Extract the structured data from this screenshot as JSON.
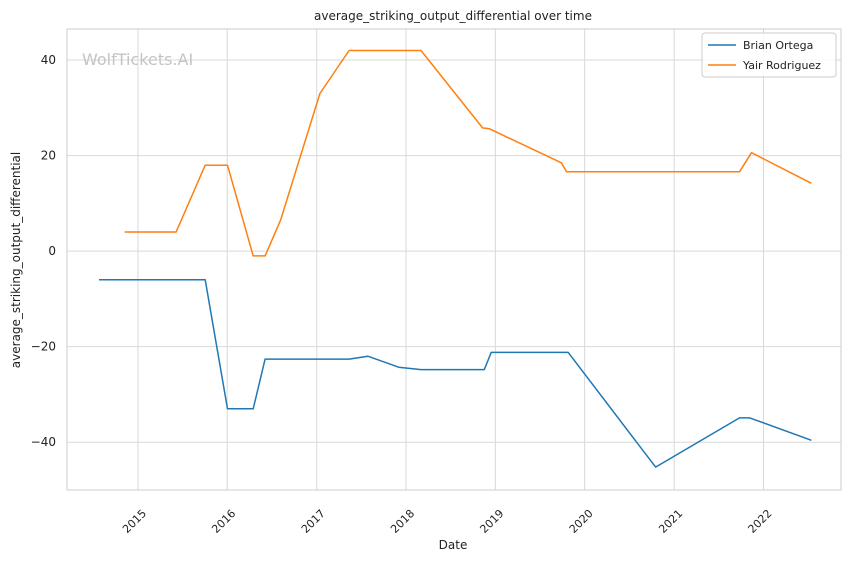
{
  "chart_data": {
    "type": "line",
    "title": "average_striking_output_differential over time",
    "xlabel": "Date",
    "ylabel": "average_striking_output_differential",
    "watermark": "WolfTickets.AI",
    "x_ticks": [
      "2015",
      "2016",
      "2017",
      "2018",
      "2019",
      "2020",
      "2021",
      "2022"
    ],
    "y_ticks": [
      40,
      20,
      0,
      -20,
      -40
    ],
    "xlim": [
      "2014-03-17",
      "2022-11-14"
    ],
    "ylim": [
      -50,
      46.5
    ],
    "grid": true,
    "legend_position": "top-right",
    "series": [
      {
        "name": "Brian Ortega",
        "color": "#1f77b4",
        "points": [
          [
            "2014-07-26",
            -6
          ],
          [
            "2015-10-03",
            -6
          ],
          [
            "2016-01-02",
            -33
          ],
          [
            "2016-04-16",
            -33
          ],
          [
            "2016-06-04",
            -22.6
          ],
          [
            "2017-05-13",
            -22.6
          ],
          [
            "2017-07-29",
            -22
          ],
          [
            "2017-12-02",
            -24.3
          ],
          [
            "2018-03-03",
            -24.8
          ],
          [
            "2018-11-17",
            -24.8
          ],
          [
            "2018-12-15",
            -21.2
          ],
          [
            "2019-10-26",
            -21.2
          ],
          [
            "2020-10-17",
            -45.2
          ],
          [
            "2021-09-25",
            -34.9
          ],
          [
            "2021-11-06",
            -34.9
          ],
          [
            "2022-07-16",
            -39.6
          ]
        ]
      },
      {
        "name": "Yair Rodriguez",
        "color": "#ff7f0e",
        "points": [
          [
            "2014-11-08",
            4
          ],
          [
            "2015-06-06",
            4
          ],
          [
            "2015-10-03",
            18
          ],
          [
            "2016-01-02",
            18
          ],
          [
            "2016-04-16",
            -1
          ],
          [
            "2016-06-04",
            -1
          ],
          [
            "2016-08-06",
            6.5
          ],
          [
            "2017-01-14",
            33
          ],
          [
            "2017-05-13",
            42
          ],
          [
            "2018-03-03",
            42
          ],
          [
            "2018-11-10",
            25.8
          ],
          [
            "2018-12-08",
            25.6
          ],
          [
            "2019-09-28",
            18.5
          ],
          [
            "2019-10-19",
            16.6
          ],
          [
            "2021-09-25",
            16.6
          ],
          [
            "2021-11-13",
            20.6
          ],
          [
            "2022-07-16",
            14.2
          ]
        ]
      }
    ]
  }
}
